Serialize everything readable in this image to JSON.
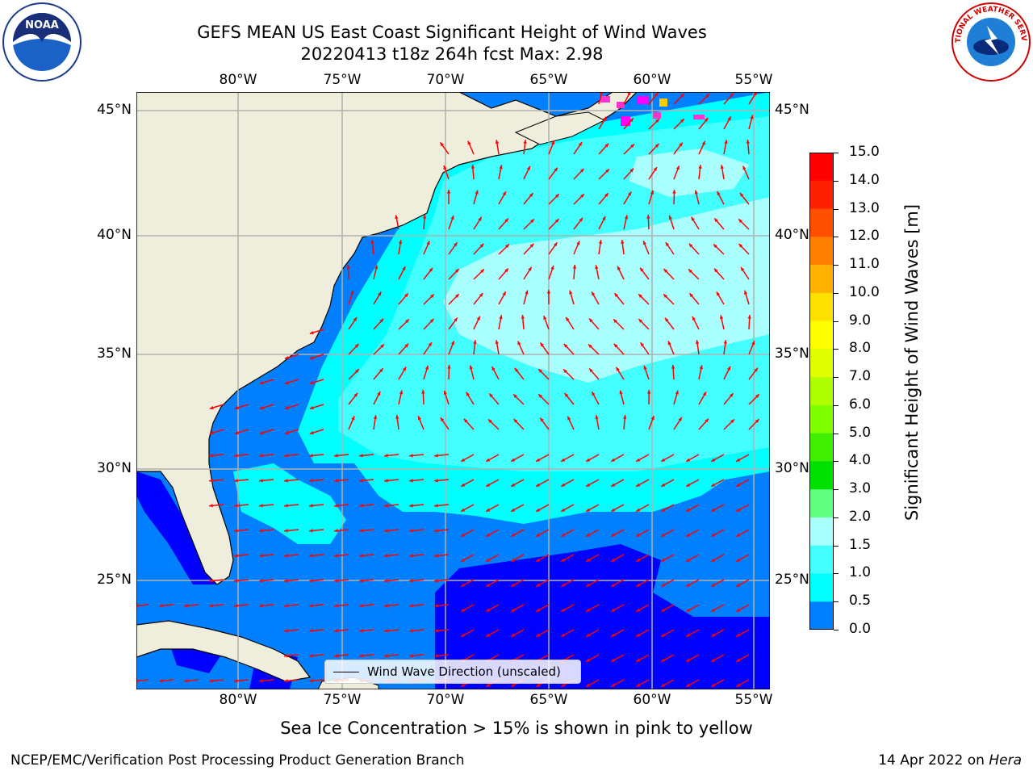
{
  "header": {
    "title_line1": "GEFS MEAN US East Coast Significant Height of Wind Waves",
    "title_line2": "20220413 t18z 264h fcst   Max: 2.98"
  },
  "logos": {
    "left_text": "NOAA",
    "right_text": "NATIONAL WEATHER SERVICE"
  },
  "map": {
    "lon_labels": [
      "80°W",
      "75°W",
      "70°W",
      "65°W",
      "60°W",
      "55°W"
    ],
    "lat_labels": [
      "45°N",
      "40°N",
      "35°N",
      "30°N",
      "25°N"
    ],
    "legend_label": "Wind Wave Direction (unscaled)",
    "colors": {
      "land": "#efeedd",
      "blue_dark": "#0000ff",
      "blue_mid": "#0080ff",
      "cyan": "#00ffff",
      "cyan_light": "#44ffff",
      "cyan_pale": "#aaffff",
      "arrow": "#ff0000",
      "ice": "#ff33cc"
    }
  },
  "colorbar": {
    "title": "Significant Height of Wind Waves [m]",
    "ticks": [
      "15.0",
      "14.0",
      "13.0",
      "12.0",
      "11.0",
      "10.0",
      "9.0",
      "8.0",
      "7.0",
      "6.0",
      "5.0",
      "4.0",
      "3.0",
      "2.0",
      "1.5",
      "1.0",
      "0.5",
      "0.0"
    ],
    "colors": [
      "#ff0000",
      "#ff2000",
      "#ff5000",
      "#ff8000",
      "#ffb000",
      "#ffe000",
      "#ffff00",
      "#e0ff00",
      "#b0ff00",
      "#80ff00",
      "#40ee00",
      "#00e000",
      "#60ff80",
      "#aaffff",
      "#44ffff",
      "#00ffff",
      "#0080ff",
      "#0000ff"
    ]
  },
  "footer": {
    "subtitle": "Sea Ice Concentration > 15% is shown in pink to yellow",
    "left": "NCEP/EMC/Verification Post Processing Product Generation Branch",
    "right_date": "14 Apr 2022 on",
    "right_host": "Hera"
  }
}
